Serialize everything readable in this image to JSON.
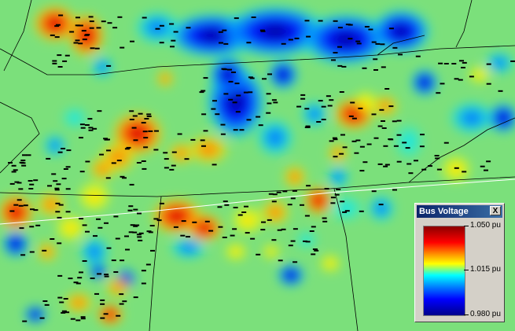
{
  "legend": {
    "title": "Bus Voltage",
    "close_glyph": "X",
    "labels": {
      "max": "1.050 pu",
      "mid": "1.015 pu",
      "min": "0.980 pu"
    },
    "scale": {
      "max": 1.05,
      "mid": 1.015,
      "min": 0.98
    }
  },
  "colors": {
    "background": "#7be07b",
    "high": "#d40000",
    "low": "#00006e",
    "border": "#000000",
    "highlight_line": "#ffffff"
  },
  "icons": {
    "close": "close-icon",
    "bus": "bus-marker"
  }
}
